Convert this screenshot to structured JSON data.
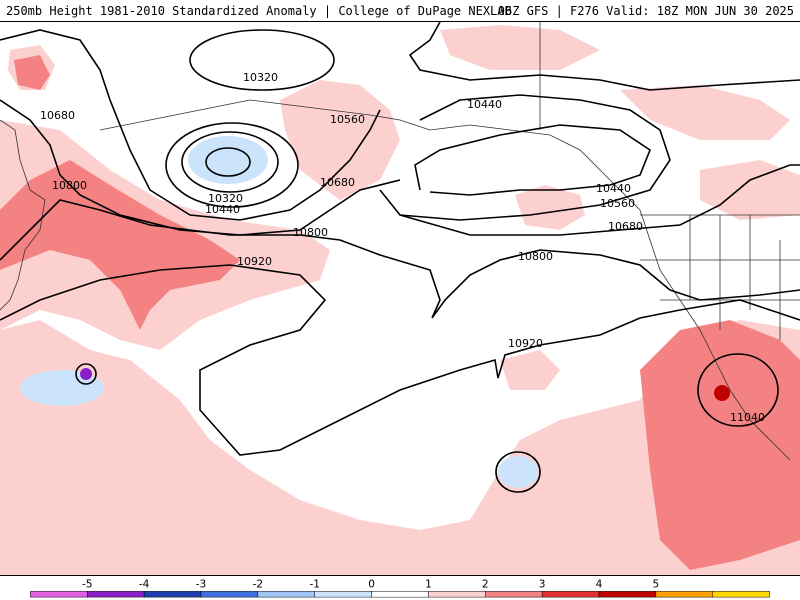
{
  "header": {
    "title_left": "250mb Height 1981-2010 Standardized Anomaly | College of DuPage NEXLAB",
    "title_right": "06Z GFS | F276 Valid: 18Z MON JUN 30 2025"
  },
  "contour_labels": [
    "10320",
    "10320",
    "10440",
    "10560",
    "10680",
    "10680",
    "10800",
    "10800",
    "10920",
    "10440",
    "10440",
    "10560",
    "10680",
    "10800",
    "10920",
    "11040"
  ],
  "colorbar": {
    "ticks": [
      "-5",
      "-4",
      "-3",
      "-2",
      "-1",
      "0",
      "1",
      "2",
      "3",
      "4",
      "5"
    ],
    "colors": [
      "#e060e0",
      "#8a1fc8",
      "#1f3fae",
      "#3f6fe0",
      "#9fc4f8",
      "#cce4fb",
      "#ffffff",
      "#fdd0d0",
      "#f58282",
      "#e03030",
      "#c00000",
      "#ff9f00",
      "#ffd700"
    ]
  }
}
